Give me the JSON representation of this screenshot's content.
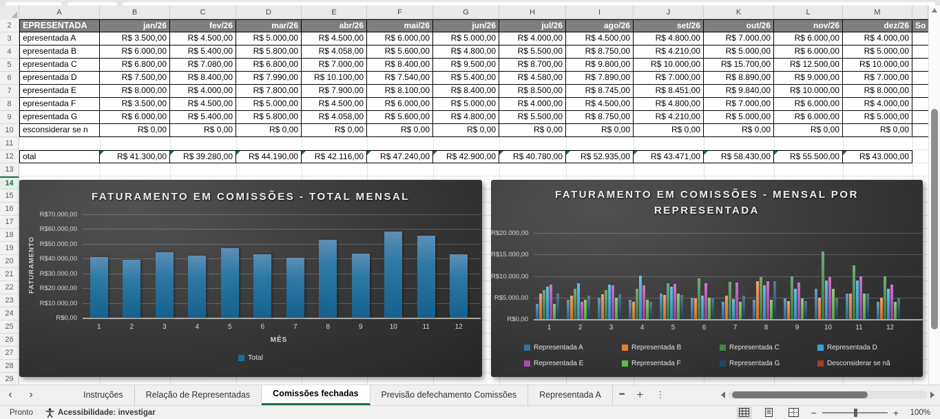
{
  "sheet": {
    "column_letters": [
      "A",
      "B",
      "C",
      "D",
      "E",
      "F",
      "G",
      "H",
      "I",
      "J",
      "K",
      "L",
      "M"
    ],
    "partial_column_header": "So",
    "gutter": {
      "first_row": 2,
      "last_row": 29,
      "active_row": 14
    },
    "table": {
      "header": {
        "row": "2",
        "label": "EPRESENTADA",
        "months": [
          "jan/26",
          "fev/26",
          "mar/26",
          "abr/26",
          "mai/26",
          "jun/26",
          "jul/26",
          "ago/26",
          "set/26",
          "out/26",
          "nov/26",
          "dez/26"
        ]
      },
      "rows": [
        {
          "row": "3",
          "label": "epresentada A",
          "cells": [
            "R$ 3.500,00",
            "R$ 4.500,00",
            "R$ 5.000,00",
            "R$ 4.500,00",
            "R$ 6.000,00",
            "R$ 5.000,00",
            "R$ 4.000,00",
            "R$ 4.500,00",
            "R$ 4.800,00",
            "R$ 7.000,00",
            "R$ 6.000,00",
            "R$ 4.000,00"
          ]
        },
        {
          "row": "4",
          "label": "epresentada B",
          "cells": [
            "R$ 6.000,00",
            "R$ 5.400,00",
            "R$ 5.800,00",
            "R$ 4.058,00",
            "R$ 5.600,00",
            "R$ 4.800,00",
            "R$ 5.500,00",
            "R$ 8.750,00",
            "R$ 4.210,00",
            "R$ 5.000,00",
            "R$ 6.000,00",
            "R$ 5.000,00"
          ]
        },
        {
          "row": "5",
          "label": "epresentada C",
          "cells": [
            "R$ 6.800,00",
            "R$ 7.080,00",
            "R$ 6.800,00",
            "R$ 7.000,00",
            "R$ 8.400,00",
            "R$ 9.500,00",
            "R$ 8.700,00",
            "R$ 9.800,00",
            "R$ 10.000,00",
            "R$ 15.700,00",
            "R$ 12.500,00",
            "R$ 10.000,00"
          ]
        },
        {
          "row": "6",
          "label": "epresentada D",
          "cells": [
            "R$ 7.500,00",
            "R$ 8.400,00",
            "R$ 7.990,00",
            "R$ 10.100,00",
            "R$ 7.540,00",
            "R$ 5.400,00",
            "R$ 4.580,00",
            "R$ 7.890,00",
            "R$ 7.000,00",
            "R$ 8.890,00",
            "R$ 9.000,00",
            "R$ 7.000,00"
          ]
        },
        {
          "row": "7",
          "label": "epresentada E",
          "cells": [
            "R$ 8.000,00",
            "R$ 4.000,00",
            "R$ 7.800,00",
            "R$ 7.900,00",
            "R$ 8.100,00",
            "R$ 8.400,00",
            "R$ 8.500,00",
            "R$ 8.745,00",
            "R$ 8.451,00",
            "R$ 9.840,00",
            "R$ 10.000,00",
            "R$ 8.000,00"
          ]
        },
        {
          "row": "8",
          "label": "epresentada F",
          "cells": [
            "R$ 3.500,00",
            "R$ 4.500,00",
            "R$ 5.000,00",
            "R$ 4.500,00",
            "R$ 6.000,00",
            "R$ 5.000,00",
            "R$ 4.000,00",
            "R$ 4.500,00",
            "R$ 4.800,00",
            "R$ 7.000,00",
            "R$ 6.000,00",
            "R$ 4.000,00"
          ]
        },
        {
          "row": "9",
          "label": "epresentada G",
          "cells": [
            "R$ 6.000,00",
            "R$ 5.400,00",
            "R$ 5.800,00",
            "R$ 4.058,00",
            "R$ 5.600,00",
            "R$ 4.800,00",
            "R$ 5.500,00",
            "R$ 8.750,00",
            "R$ 4.210,00",
            "R$ 5.000,00",
            "R$ 6.000,00",
            "R$ 5.000,00"
          ]
        },
        {
          "row": "10",
          "label": "esconsiderar se n",
          "cells": [
            "R$ 0,00",
            "R$ 0,00",
            "R$ 0,00",
            "R$ 0,00",
            "R$ 0,00",
            "R$ 0,00",
            "R$ 0,00",
            "R$ 0,00",
            "R$ 0,00",
            "R$ 0,00",
            "R$ 0,00",
            "R$ 0,00"
          ]
        }
      ],
      "total": {
        "row": "12",
        "label": "otal",
        "cells": [
          "R$ 41.300,00",
          "R$ 39.280,00",
          "R$ 44.190,00",
          "R$ 42.116,00",
          "R$ 47.240,00",
          "R$ 42.900,00",
          "R$ 40.780,00",
          "R$ 52.935,00",
          "R$ 43.471,00",
          "R$ 58.430,00",
          "R$ 55.500,00",
          "R$ 43.000,00"
        ]
      }
    }
  },
  "chart_data": [
    {
      "type": "bar",
      "title": "FATURAMENTO EM COMISSÕES - TOTAL MENSAL",
      "categories": [
        "1",
        "2",
        "3",
        "4",
        "5",
        "6",
        "7",
        "8",
        "9",
        "10",
        "11",
        "12"
      ],
      "values": [
        41300,
        39280,
        44190,
        42116,
        47240,
        42900,
        40780,
        52935,
        43471,
        58430,
        55500,
        43000
      ],
      "xlabel": "MÊS",
      "ylabel": "FATURAMENTO",
      "ylim": [
        0,
        70000
      ],
      "ytick_labels": [
        "R$0,00",
        "R$10.000,00",
        "R$20.000,00",
        "R$30.000,00",
        "R$40.000,00",
        "R$50.000,00",
        "R$60.000,00",
        "R$70.000,00"
      ],
      "grid": true,
      "legend": [
        "Total"
      ],
      "legend_position": "bottom",
      "bar_color": "#1F6E9E",
      "background": "dark-gray-gradient"
    },
    {
      "type": "bar",
      "title": "FATURAMENTO EM COMISSÕES - MENSAL POR REPRESENTADA",
      "categories": [
        "1",
        "2",
        "3",
        "4",
        "5",
        "6",
        "7",
        "8",
        "9",
        "10",
        "11",
        "12"
      ],
      "series": [
        {
          "name": "Representada A",
          "color": "#2E75A3",
          "values": [
            3500,
            4500,
            5000,
            4500,
            6000,
            5000,
            4000,
            4500,
            4800,
            7000,
            6000,
            4000
          ]
        },
        {
          "name": "Representada B",
          "color": "#ED7D31",
          "values": [
            6000,
            5400,
            5800,
            4058,
            5600,
            4800,
            5500,
            8750,
            4210,
            5000,
            6000,
            5000
          ]
        },
        {
          "name": "Representada C",
          "color": "#3E8A46",
          "values": [
            6800,
            7080,
            6800,
            7000,
            8400,
            9500,
            8700,
            9800,
            10000,
            15700,
            12500,
            10000
          ]
        },
        {
          "name": "Representada D",
          "color": "#35A2DB",
          "values": [
            7500,
            8400,
            7990,
            10100,
            7540,
            5400,
            4580,
            7890,
            7000,
            8890,
            9000,
            7000
          ]
        },
        {
          "name": "Representada E",
          "color": "#B244B2",
          "values": [
            8000,
            4000,
            7800,
            7900,
            8100,
            8400,
            8500,
            8745,
            8451,
            9840,
            10000,
            8000
          ]
        },
        {
          "name": "Representada F",
          "color": "#5FBB46",
          "values": [
            3500,
            4500,
            5000,
            4500,
            6000,
            5000,
            4000,
            4500,
            4800,
            7000,
            6000,
            4000
          ]
        },
        {
          "name": "Representada G",
          "color": "#1B4A66",
          "values": [
            6000,
            5400,
            5800,
            4058,
            5600,
            4800,
            5500,
            8750,
            4210,
            5000,
            6000,
            5000
          ]
        },
        {
          "name": "Desconsiderar se nã",
          "color": "#A2401F",
          "values": [
            0,
            0,
            0,
            0,
            0,
            0,
            0,
            0,
            0,
            0,
            0,
            0
          ]
        }
      ],
      "ylim": [
        0,
        20000
      ],
      "ytick_labels": [
        "R$0,00",
        "R$5.000,00",
        "R$10.000,00",
        "R$15.000,00",
        "R$20.000,00"
      ],
      "grid": true,
      "legend_position": "bottom",
      "background": "dark-gray-gradient"
    }
  ],
  "tabs": {
    "nav_prev": "‹",
    "nav_next": "›",
    "items": [
      {
        "label": "Instruções",
        "active": false
      },
      {
        "label": "Relação de Representadas",
        "active": false
      },
      {
        "label": "Comissões fechadas",
        "active": true
      },
      {
        "label": "Previsão defechamento Comissões",
        "active": false
      },
      {
        "label": "Representada A",
        "active": false
      }
    ],
    "more_sheets": "•••",
    "add_sheet": "+",
    "menu": "⋮",
    "active_color": "#1E7145"
  },
  "status": {
    "mode": "Pronto",
    "accessibility": "Acessibilidade: investigar",
    "zoom_level": "100%"
  }
}
